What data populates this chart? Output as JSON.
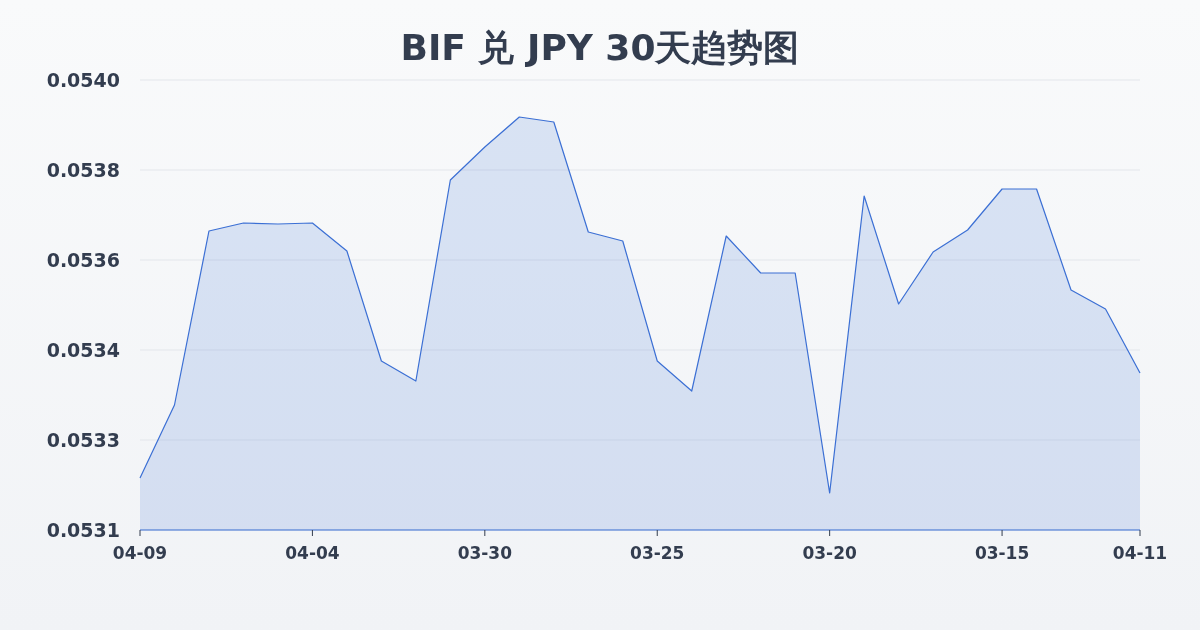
{
  "chart_data": {
    "type": "area",
    "title": "BIF 兑 JPY 30天趋势图",
    "categories": [
      "04-09",
      null,
      null,
      null,
      null,
      "04-04",
      null,
      null,
      null,
      null,
      "03-30",
      null,
      null,
      null,
      null,
      "03-25",
      null,
      null,
      null,
      null,
      "03-20",
      null,
      null,
      null,
      null,
      "03-15",
      null,
      null,
      null,
      "04-11"
    ],
    "values": [
      0.053184,
      0.05333,
      0.053678,
      0.053694,
      0.053692,
      0.053694,
      0.053638,
      0.053418,
      0.053378,
      0.05378,
      0.053846,
      0.053906,
      0.053896,
      0.053676,
      0.053658,
      0.053418,
      0.053358,
      0.053668,
      0.053594,
      0.053594,
      0.053154,
      0.053748,
      0.053532,
      0.053636,
      0.05368,
      0.053762,
      0.053762,
      0.05356,
      0.053522,
      0.053394
    ],
    "color": "#3b6fd4",
    "ylim": [
      0.05308,
      0.05398
    ],
    "yticks": [
      {
        "value": 0.05308,
        "label": "0.0531"
      },
      {
        "value": 0.05326,
        "label": "0.0533"
      },
      {
        "value": 0.05344,
        "label": "0.0534"
      },
      {
        "value": 0.05362,
        "label": "0.0536"
      },
      {
        "value": 0.0538,
        "label": "0.0538"
      },
      {
        "value": 0.05398,
        "label": "0.0540"
      }
    ],
    "grid": "y"
  }
}
